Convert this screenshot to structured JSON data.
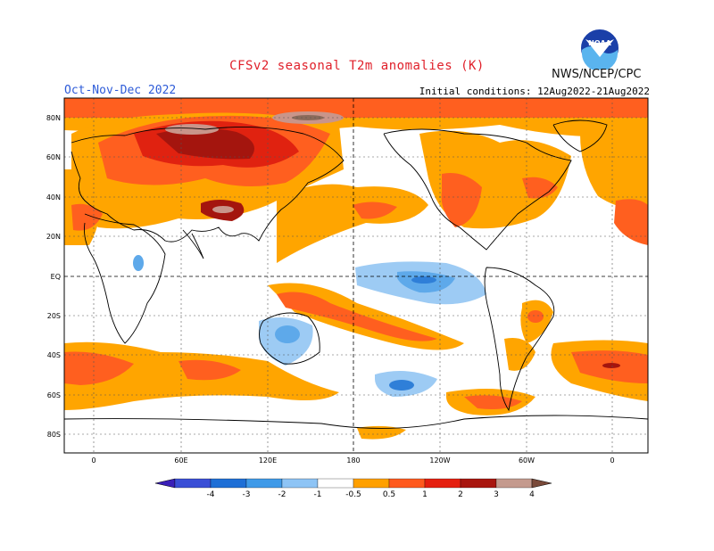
{
  "title": "CFSv2 seasonal T2m anomalies (K)",
  "season": "Oct-Nov-Dec 2022",
  "initial_conditions": "Initial conditions: 12Aug2022-21Aug2022",
  "agency": "NWS/NCEP/CPC",
  "logo_icon": "noaa-logo-icon",
  "logo_text": "NOAA",
  "lat_labels": [
    "80N",
    "60N",
    "40N",
    "20N",
    "EQ",
    "20S",
    "40S",
    "60S",
    "80S"
  ],
  "lon_labels": [
    "0",
    "60E",
    "120E",
    "180",
    "120W",
    "60W",
    "0"
  ],
  "colorbar": {
    "labels": [
      "-4",
      "-3",
      "-2",
      "-1",
      "-0.5",
      "0.5",
      "1",
      "2",
      "3",
      "4"
    ],
    "colors": [
      "#3a1fb8",
      "#3a4ed6",
      "#1e6fd6",
      "#3f9ae8",
      "#8ec4f5",
      "#ffffff",
      "#ffa000",
      "#ff5a1e",
      "#e52010",
      "#a8160f",
      "#c49a8e",
      "#7a4a3a"
    ]
  },
  "palette": {
    "warm_05": "#ffa500",
    "warm_1": "#ff5f1f",
    "warm_2": "#e02210",
    "warm_3": "#a4150e",
    "warm_4": "#c9958a",
    "cool_05": "#9dcbf4",
    "cool_1": "#5ea9ea",
    "cool_2": "#2f7fd8"
  }
}
